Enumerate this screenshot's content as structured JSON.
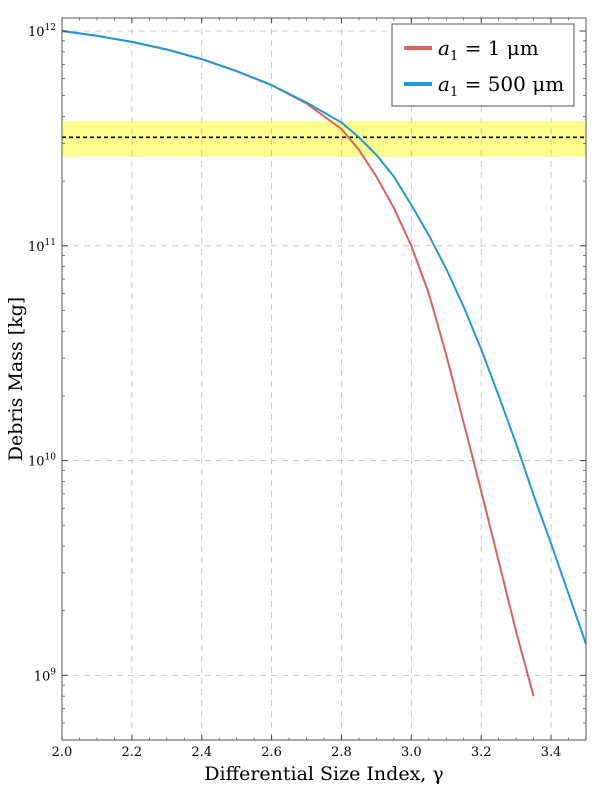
{
  "chart_data": {
    "type": "line",
    "title": "",
    "xlabel": "Differential Size Index, γ",
    "ylabel": "Debris Mass [kg]",
    "xlim": [
      2.0,
      3.5
    ],
    "ylim": [
      500000000.0,
      1150000000000.0
    ],
    "yscale": "log",
    "grid": true,
    "legend_position": "top-right",
    "x_ticks": [
      {
        "value": 2.0,
        "label": "2.0"
      },
      {
        "value": 2.2,
        "label": "2.2"
      },
      {
        "value": 2.4,
        "label": "2.4"
      },
      {
        "value": 2.6,
        "label": "2.6"
      },
      {
        "value": 2.8,
        "label": "2.8"
      },
      {
        "value": 3.0,
        "label": "3.0"
      },
      {
        "value": 3.2,
        "label": "3.2"
      },
      {
        "value": 3.4,
        "label": "3.4"
      }
    ],
    "y_ticks": [
      {
        "value": 1000000000.0,
        "base": "10",
        "exp": "9"
      },
      {
        "value": 10000000000.0,
        "base": "10",
        "exp": "10"
      },
      {
        "value": 100000000000.0,
        "base": "10",
        "exp": "11"
      },
      {
        "value": 1000000000000.0,
        "base": "10",
        "exp": "12"
      }
    ],
    "band": {
      "y_low": 260000000000.0,
      "y_high": 380000000000.0,
      "y_line": 320000000000.0,
      "color": "#fdfd8c",
      "line_color": "#000000"
    },
    "series": [
      {
        "name": "a₁ = 1 μm",
        "color": "#d9625f",
        "x": [
          2.0,
          2.1,
          2.2,
          2.3,
          2.4,
          2.5,
          2.6,
          2.7,
          2.8,
          2.85,
          2.9,
          2.95,
          3.0,
          3.05,
          3.1,
          3.15,
          3.2,
          3.25,
          3.3,
          3.35
        ],
        "y": [
          1000000000000.0,
          950000000000.0,
          890000000000.0,
          820000000000.0,
          740000000000.0,
          650000000000.0,
          560000000000.0,
          460000000000.0,
          350000000000.0,
          280000000000.0,
          210000000000.0,
          150000000000.0,
          100000000000.0,
          60000000000.0,
          31000000000.0,
          15000000000.0,
          7200000000.0,
          3400000000.0,
          1600000000.0,
          800000000.0
        ]
      },
      {
        "name": "a₁ = 500 μm",
        "color": "#1f9ad6",
        "x": [
          2.0,
          2.1,
          2.2,
          2.3,
          2.4,
          2.5,
          2.6,
          2.7,
          2.8,
          2.85,
          2.9,
          2.95,
          3.0,
          3.05,
          3.1,
          3.15,
          3.2,
          3.25,
          3.3,
          3.35,
          3.4,
          3.45,
          3.5
        ],
        "y": [
          1000000000000.0,
          950000000000.0,
          890000000000.0,
          820000000000.0,
          740000000000.0,
          650000000000.0,
          560000000000.0,
          465000000000.0,
          375000000000.0,
          320000000000.0,
          265000000000.0,
          210000000000.0,
          155000000000.0,
          112000000000.0,
          78000000000.0,
          52000000000.0,
          33000000000.0,
          20000000000.0,
          12000000000.0,
          6900000000.0,
          4100000000.0,
          2400000000.0,
          1400000000.0
        ]
      }
    ],
    "legend": {
      "items": [
        {
          "prefix": "a",
          "sub": "1",
          "rest": " = 1 μm"
        },
        {
          "prefix": "a",
          "sub": "1",
          "rest": " = 500 μm"
        }
      ]
    }
  }
}
